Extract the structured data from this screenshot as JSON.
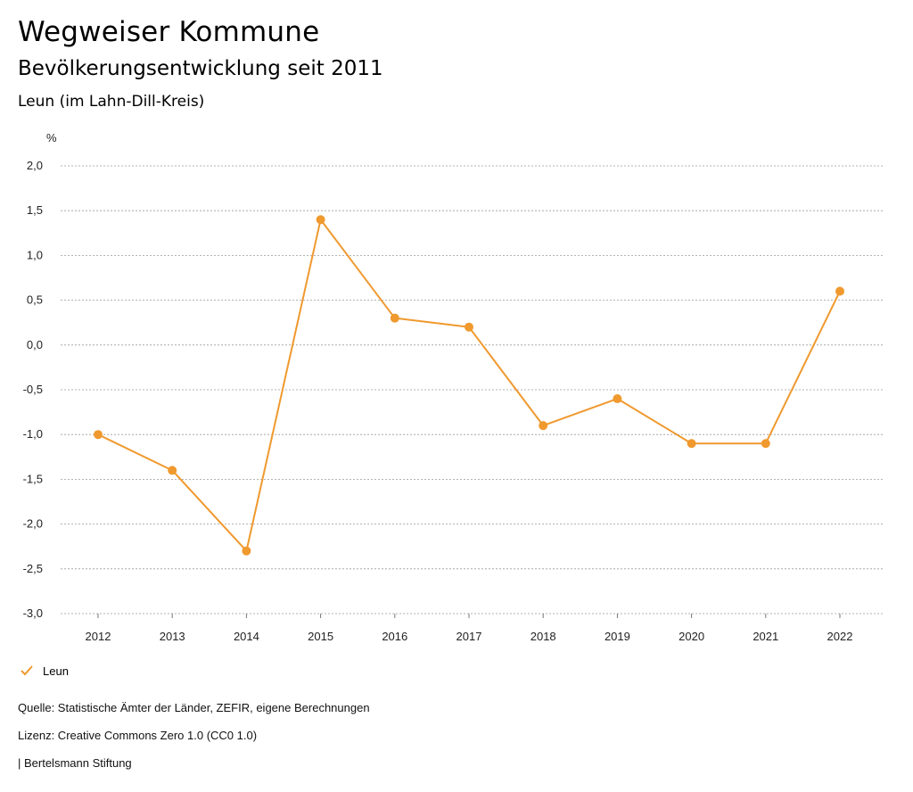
{
  "header": {
    "title": "Wegweiser Kommune",
    "subtitle": "Bevölkerungsentwicklung seit 2011",
    "region": "Leun (im Lahn-Dill-Kreis)"
  },
  "chart_data": {
    "type": "line",
    "categories": [
      "2012",
      "2013",
      "2014",
      "2015",
      "2016",
      "2017",
      "2018",
      "2019",
      "2020",
      "2021",
      "2022"
    ],
    "series": [
      {
        "name": "Leun",
        "values": [
          -1.0,
          -1.4,
          -2.3,
          1.4,
          0.3,
          0.2,
          -0.9,
          -0.6,
          -1.1,
          -1.1,
          0.6
        ],
        "color": "#f0992e"
      }
    ],
    "y_unit": "%",
    "ylim": [
      -3.0,
      2.0
    ],
    "yticks": [
      2.0,
      1.5,
      1.0,
      0.5,
      0.0,
      -0.5,
      -1.0,
      -1.5,
      -2.0,
      -2.5,
      -3.0
    ],
    "ytick_labels": [
      "2,0",
      "1,5",
      "1,0",
      "0,5",
      "0,0",
      "-0,5",
      "-1,0",
      "-1,5",
      "-2,0",
      "-2,5",
      "-3,0"
    ],
    "grid": true,
    "legend_position": "bottom-left"
  },
  "legend": {
    "label": "Leun"
  },
  "footer": {
    "source": "Quelle: Statistische Ämter der Länder, ZEFIR, eigene Berechnungen",
    "license": "Lizenz: Creative Commons Zero 1.0 (CC0 1.0)",
    "publisher": "| Bertelsmann Stiftung"
  }
}
